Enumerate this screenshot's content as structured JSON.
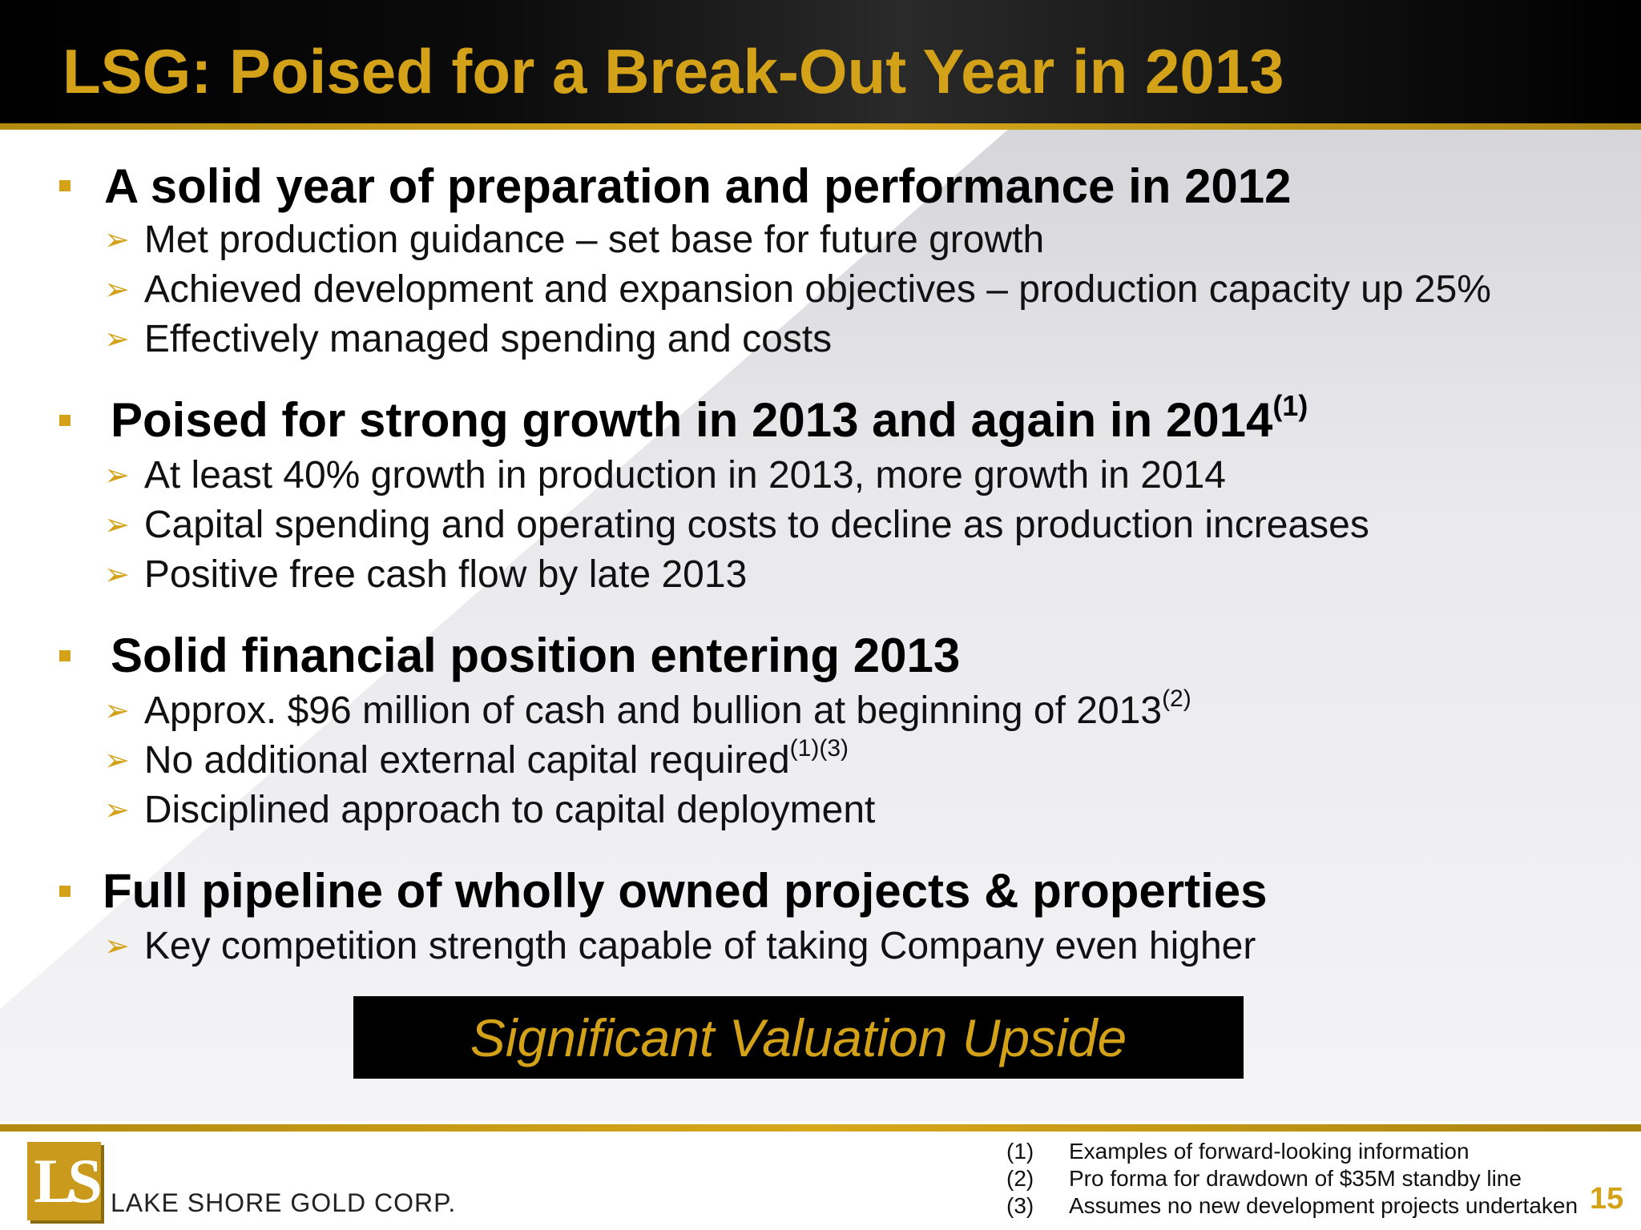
{
  "title": "LSG: Poised for a Break-Out Year in 2013",
  "sections": [
    {
      "heading": "A solid year of preparation and performance in 2012",
      "heading_sup": "",
      "items": [
        {
          "text": "Met production guidance – set base for future growth",
          "sup": ""
        },
        {
          "text": "Achieved development and expansion objectives – production capacity up 25%",
          "sup": ""
        },
        {
          "text": "Effectively managed spending and costs",
          "sup": ""
        }
      ]
    },
    {
      "heading": "Poised for strong growth in 2013 and again in 2014",
      "heading_sup": "(1)",
      "items": [
        {
          "text": "At least 40% growth in production in 2013, more growth in 2014",
          "sup": ""
        },
        {
          "text": "Capital spending and operating costs to decline as production increases",
          "sup": ""
        },
        {
          "text": "Positive free cash flow by late 2013",
          "sup": ""
        }
      ]
    },
    {
      "heading": "Solid financial position entering 2013",
      "heading_sup": "",
      "items": [
        {
          "text": "Approx. $96 million of cash and bullion at beginning of 2013",
          "sup": "(2)"
        },
        {
          "text": "No additional external capital required",
          "sup": "(1)(3)"
        },
        {
          "text": "Disciplined approach to capital deployment",
          "sup": ""
        }
      ]
    },
    {
      "heading": "Full pipeline of wholly owned projects & properties",
      "heading_sup": "",
      "items": [
        {
          "text": "Key competition strength capable of taking Company even higher",
          "sup": ""
        }
      ]
    }
  ],
  "banner": "Significant Valuation Upside",
  "footnotes": [
    {
      "num": "(1)",
      "text": "Examples of forward-looking information"
    },
    {
      "num": "(2)",
      "text": "Pro forma for drawdown of $35M standby line"
    },
    {
      "num": "(3)",
      "text": "Assumes no new development projects undertaken"
    }
  ],
  "logo": {
    "mark": "LS",
    "text": "LAKE SHORE GOLD CORP."
  },
  "page_number": "15",
  "colors": {
    "accent": "#d4a219",
    "header_bg": "#000000",
    "banner_bg": "#000000"
  },
  "icons": {
    "bullet": "square-bullet-icon",
    "sub_bullet": "arrow-bullet-icon"
  }
}
